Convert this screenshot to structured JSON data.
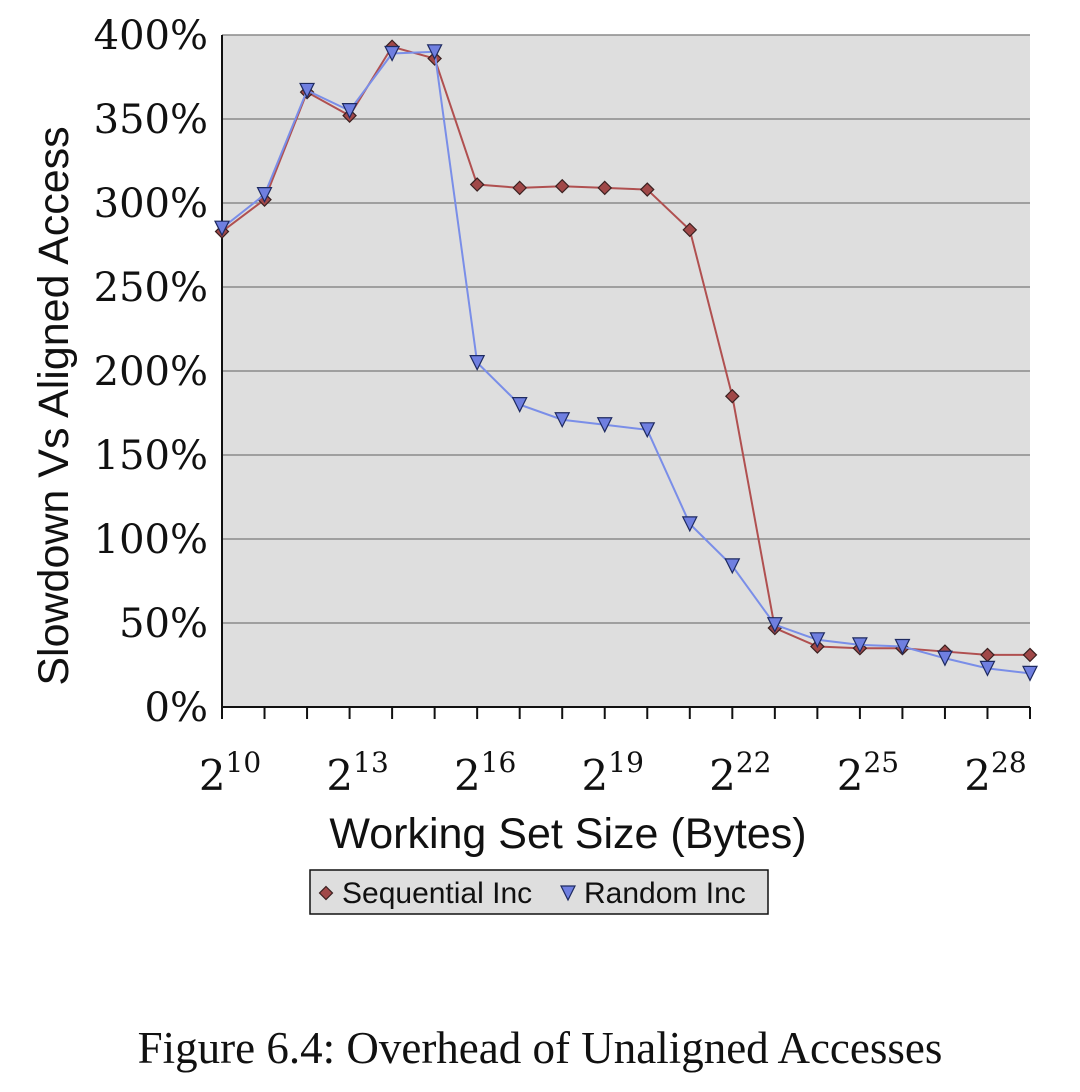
{
  "chart_data": {
    "type": "line",
    "xlabel": "Working Set Size (Bytes)",
    "ylabel": "Slowdown Vs Aligned Access",
    "x_exponents": [
      10,
      11,
      12,
      13,
      14,
      15,
      16,
      17,
      18,
      19,
      20,
      21,
      22,
      23,
      24,
      25,
      26,
      27,
      28,
      29
    ],
    "x_tick_exponents": [
      10,
      13,
      16,
      19,
      22,
      25,
      28
    ],
    "x_tick_base": "2",
    "ylim": [
      0,
      400
    ],
    "y_ticks": [
      0,
      50,
      100,
      150,
      200,
      250,
      300,
      350,
      400
    ],
    "y_tick_suffix": "%",
    "grid": true,
    "legend_position": "bottom",
    "series": [
      {
        "name": "Sequential Inc",
        "marker": "diamond",
        "color": "#b05050",
        "fill": "#a04848",
        "values": [
          283,
          302,
          366,
          352,
          393,
          386,
          311,
          309,
          310,
          309,
          308,
          284,
          185,
          47,
          36,
          35,
          35,
          33,
          31,
          31
        ]
      },
      {
        "name": "Random Inc",
        "marker": "triangle-down",
        "color": "#7a8ee8",
        "fill": "#6f7fe0",
        "values": [
          285,
          305,
          367,
          355,
          389,
          390,
          205,
          180,
          171,
          168,
          165,
          109,
          84,
          49,
          40,
          37,
          36,
          29,
          23,
          20
        ]
      }
    ],
    "plot_background": "#dedede"
  },
  "caption": "Figure 6.4: Overhead of Unaligned Accesses"
}
